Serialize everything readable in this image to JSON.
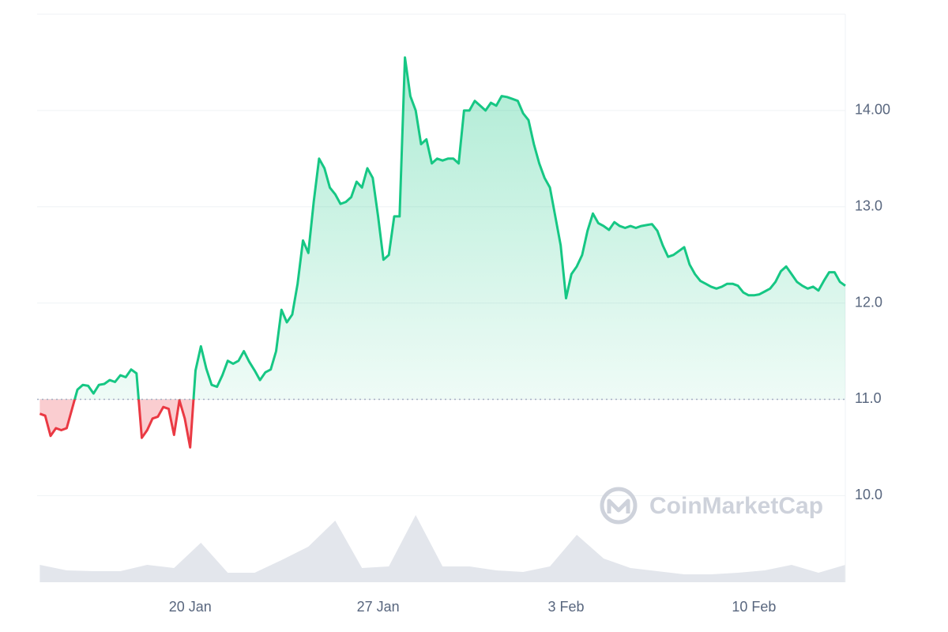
{
  "chart_data": {
    "type": "line",
    "x": [
      14.4,
      14.6,
      14.8,
      15.0,
      15.2,
      15.4,
      15.6,
      15.8,
      16.0,
      16.2,
      16.4,
      16.6,
      16.8,
      17.0,
      17.2,
      17.4,
      17.6,
      17.8,
      18.0,
      18.2,
      18.4,
      18.6,
      18.8,
      19.0,
      19.2,
      19.4,
      19.6,
      19.8,
      20.0,
      20.2,
      20.4,
      20.6,
      20.8,
      21.0,
      21.2,
      21.4,
      21.6,
      21.8,
      22.0,
      22.2,
      22.4,
      22.6,
      22.8,
      23.0,
      23.2,
      23.4,
      23.6,
      23.8,
      24.0,
      24.2,
      24.4,
      24.6,
      24.8,
      25.0,
      25.2,
      25.4,
      25.6,
      25.8,
      26.0,
      26.2,
      26.4,
      26.6,
      26.8,
      27.0,
      27.2,
      27.4,
      27.6,
      27.8,
      28.0,
      28.2,
      28.4,
      28.6,
      28.8,
      29.0,
      29.2,
      29.4,
      29.6,
      29.8,
      30.0,
      30.2,
      30.4,
      30.6,
      30.8,
      31.0,
      31.2,
      31.4,
      31.6,
      31.8,
      32.0,
      32.2,
      32.4,
      32.6,
      32.8,
      33.0,
      33.2,
      33.4,
      33.6,
      33.8,
      34.0,
      34.2,
      34.4,
      34.6,
      34.8,
      35.0,
      35.2,
      35.4,
      35.6,
      35.8,
      36.0,
      36.2,
      36.4,
      36.6,
      36.8,
      37.0,
      37.2,
      37.4,
      37.6,
      37.8,
      38.0,
      38.2,
      38.4,
      38.6,
      38.8,
      39.0,
      39.2,
      39.4,
      39.6,
      39.8,
      40.0,
      40.2,
      40.4,
      40.6,
      40.8,
      41.0,
      41.2,
      41.4,
      41.6,
      41.8,
      42.0,
      42.2,
      42.4,
      42.6,
      42.8,
      43.0,
      43.2,
      43.4,
      43.6,
      43.8,
      44.0,
      44.2,
      44.4
    ],
    "values": [
      10.85,
      10.83,
      10.62,
      10.7,
      10.68,
      10.7,
      10.9,
      11.1,
      11.15,
      11.14,
      11.06,
      11.15,
      11.16,
      11.2,
      11.18,
      11.25,
      11.23,
      11.31,
      11.27,
      10.6,
      10.68,
      10.8,
      10.82,
      10.92,
      10.9,
      10.63,
      10.99,
      10.8,
      10.5,
      11.3,
      11.55,
      11.32,
      11.15,
      11.13,
      11.25,
      11.4,
      11.37,
      11.4,
      11.5,
      11.39,
      11.3,
      11.2,
      11.28,
      11.31,
      11.5,
      11.93,
      11.8,
      11.88,
      12.2,
      12.65,
      12.52,
      13.05,
      13.5,
      13.4,
      13.2,
      13.13,
      13.03,
      13.05,
      13.1,
      13.26,
      13.2,
      13.4,
      13.3,
      12.9,
      12.45,
      12.5,
      12.9,
      12.9,
      14.55,
      14.15,
      14.0,
      13.65,
      13.7,
      13.45,
      13.5,
      13.48,
      13.5,
      13.5,
      13.45,
      14.0,
      14.0,
      14.1,
      14.05,
      14.0,
      14.08,
      14.05,
      14.15,
      14.14,
      14.12,
      14.1,
      13.97,
      13.9,
      13.65,
      13.45,
      13.3,
      13.2,
      12.9,
      12.6,
      12.05,
      12.3,
      12.38,
      12.5,
      12.75,
      12.93,
      12.83,
      12.8,
      12.76,
      12.84,
      12.8,
      12.78,
      12.8,
      12.78,
      12.8,
      12.81,
      12.82,
      12.75,
      12.6,
      12.48,
      12.5,
      12.54,
      12.58,
      12.4,
      12.3,
      12.23,
      12.2,
      12.17,
      12.15,
      12.17,
      12.2,
      12.2,
      12.18,
      12.11,
      12.08,
      12.08,
      12.09,
      12.12,
      12.15,
      12.22,
      12.33,
      12.38,
      12.3,
      12.22,
      12.18,
      12.15,
      12.17,
      12.13,
      12.23,
      12.32,
      12.32,
      12.22,
      12.18
    ],
    "color": "#16c784",
    "down_color": "#ea3943",
    "baseline": 11,
    "xlim": [
      14.3,
      44.4
    ],
    "ylim": [
      9.1,
      15.0
    ],
    "xticks": [
      {
        "value": 20,
        "label": "20 Jan"
      },
      {
        "value": 27,
        "label": "27 Jan"
      },
      {
        "value": 34,
        "label": "3 Feb"
      },
      {
        "value": 41,
        "label": "10 Feb"
      }
    ],
    "yticks": [
      {
        "value": 10,
        "label": "10.0"
      },
      {
        "value": 11,
        "label": "11.0"
      },
      {
        "value": 12,
        "label": "12.0"
      },
      {
        "value": 13,
        "label": "13.0"
      },
      {
        "value": 14,
        "label": "14.00"
      }
    ],
    "grid": true,
    "volume": {
      "x": [
        14.4,
        15.4,
        16.4,
        17.4,
        18.4,
        19.4,
        20.4,
        21.4,
        22.4,
        23.4,
        24.4,
        25.4,
        26.4,
        27.4,
        28.4,
        29.4,
        30.4,
        31.4,
        32.4,
        33.4,
        34.4,
        35.4,
        36.4,
        37.4,
        38.4,
        39.4,
        40.4,
        41.4,
        42.4,
        43.4,
        44.4
      ],
      "values": [
        22,
        15,
        14,
        14,
        22,
        18,
        50,
        12,
        12,
        28,
        45,
        78,
        18,
        20,
        85,
        20,
        20,
        15,
        13,
        20,
        60,
        30,
        18,
        14,
        10,
        10,
        12,
        15,
        22,
        12,
        22
      ],
      "ylim": [
        0,
        100
      ],
      "color": "#e3e6ec"
    },
    "watermark": "CoinMarketCap"
  }
}
